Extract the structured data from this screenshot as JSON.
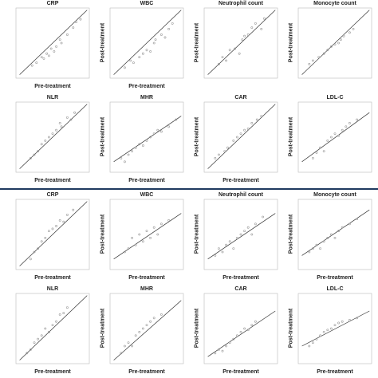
{
  "figure": {
    "divider_color": "#1f3a5f",
    "point_color": "#9a9a9a",
    "line_color": "#333333",
    "frame_color": "#bbbbbb"
  },
  "chart_data": [
    {
      "type": "scatter",
      "title": "CRP",
      "xlabel": "Pre-treatment",
      "ylabel": "",
      "x": [
        0.22,
        0.28,
        0.35,
        0.38,
        0.42,
        0.45,
        0.48,
        0.52,
        0.55,
        0.6,
        0.62,
        0.7,
        0.78,
        0.82,
        0.88
      ],
      "y": [
        0.18,
        0.22,
        0.3,
        0.28,
        0.35,
        0.32,
        0.42,
        0.38,
        0.45,
        0.55,
        0.5,
        0.62,
        0.72,
        0.8,
        0.84
      ],
      "fit": [
        [
          0.05,
          0.05
        ],
        [
          0.97,
          0.97
        ]
      ]
    },
    {
      "type": "scatter",
      "title": "WBC",
      "xlabel": "Pre-treatment",
      "ylabel": "Post-treatment",
      "x": [
        0.2,
        0.28,
        0.32,
        0.4,
        0.45,
        0.5,
        0.55,
        0.6,
        0.62,
        0.7,
        0.75,
        0.8,
        0.85
      ],
      "y": [
        0.15,
        0.25,
        0.22,
        0.3,
        0.35,
        0.4,
        0.38,
        0.5,
        0.55,
        0.62,
        0.58,
        0.7,
        0.78
      ],
      "fit": [
        [
          0.05,
          0.05
        ],
        [
          0.97,
          0.97
        ]
      ]
    },
    {
      "type": "scatter",
      "title": "Neutrophil count",
      "xlabel": "",
      "ylabel": "Post-treatment",
      "x": [
        0.2,
        0.25,
        0.3,
        0.35,
        0.42,
        0.48,
        0.52,
        0.55,
        0.6,
        0.65,
        0.7,
        0.78,
        0.82
      ],
      "y": [
        0.2,
        0.3,
        0.25,
        0.4,
        0.42,
        0.35,
        0.55,
        0.6,
        0.62,
        0.72,
        0.78,
        0.7,
        0.85
      ],
      "fit": [
        [
          0.05,
          0.05
        ],
        [
          0.97,
          0.97
        ]
      ]
    },
    {
      "type": "scatter",
      "title": "Monocyte count",
      "xlabel": "",
      "ylabel": "Post-treatment",
      "x": [
        0.15,
        0.2,
        0.28,
        0.35,
        0.4,
        0.45,
        0.5,
        0.55,
        0.58,
        0.62,
        0.7,
        0.75
      ],
      "y": [
        0.2,
        0.25,
        0.3,
        0.35,
        0.4,
        0.45,
        0.48,
        0.5,
        0.55,
        0.6,
        0.65,
        0.7
      ],
      "fit": [
        [
          0.05,
          0.05
        ],
        [
          0.97,
          0.97
        ]
      ]
    },
    {
      "type": "scatter",
      "title": "NLR",
      "xlabel": "Pre-treatment",
      "ylabel": "",
      "x": [
        0.2,
        0.25,
        0.3,
        0.35,
        0.4,
        0.45,
        0.5,
        0.55,
        0.6,
        0.62,
        0.7,
        0.75,
        0.8
      ],
      "y": [
        0.2,
        0.25,
        0.3,
        0.4,
        0.45,
        0.5,
        0.55,
        0.6,
        0.7,
        0.65,
        0.78,
        0.75,
        0.85
      ],
      "fit": [
        [
          0.05,
          0.05
        ],
        [
          0.97,
          0.97
        ]
      ]
    },
    {
      "type": "scatter",
      "title": "MHR",
      "xlabel": "Pre-treatment",
      "ylabel": "Post-treatment",
      "x": [
        0.15,
        0.2,
        0.25,
        0.3,
        0.35,
        0.4,
        0.45,
        0.5,
        0.55,
        0.6,
        0.65,
        0.7,
        0.8,
        0.9
      ],
      "y": [
        0.2,
        0.15,
        0.25,
        0.3,
        0.35,
        0.4,
        0.38,
        0.45,
        0.5,
        0.55,
        0.6,
        0.58,
        0.65,
        0.75
      ],
      "fit": [
        [
          0.05,
          0.15
        ],
        [
          0.97,
          0.8
        ]
      ]
    },
    {
      "type": "scatter",
      "title": "CAR",
      "xlabel": "Pre-treatment",
      "ylabel": "Post-treatment",
      "x": [
        0.15,
        0.2,
        0.28,
        0.32,
        0.4,
        0.45,
        0.5,
        0.55,
        0.6,
        0.65,
        0.72,
        0.78
      ],
      "y": [
        0.2,
        0.25,
        0.3,
        0.35,
        0.45,
        0.5,
        0.55,
        0.6,
        0.62,
        0.7,
        0.75,
        0.8
      ],
      "fit": [
        [
          0.05,
          0.05
        ],
        [
          0.97,
          0.97
        ]
      ]
    },
    {
      "type": "scatter",
      "title": "LDL-C",
      "xlabel": "",
      "ylabel": "Post-treatment",
      "x": [
        0.2,
        0.25,
        0.3,
        0.35,
        0.4,
        0.45,
        0.5,
        0.55,
        0.6,
        0.65,
        0.7,
        0.8
      ],
      "y": [
        0.2,
        0.28,
        0.35,
        0.3,
        0.45,
        0.5,
        0.55,
        0.52,
        0.6,
        0.65,
        0.7,
        0.75
      ],
      "fit": [
        [
          0.05,
          0.15
        ],
        [
          0.97,
          0.85
        ]
      ]
    },
    {
      "type": "scatter",
      "title": "CRP",
      "xlabel": "Pre-treatment",
      "ylabel": "",
      "x": [
        0.2,
        0.25,
        0.3,
        0.35,
        0.4,
        0.45,
        0.5,
        0.55,
        0.6,
        0.65,
        0.7,
        0.78
      ],
      "y": [
        0.15,
        0.25,
        0.3,
        0.4,
        0.45,
        0.55,
        0.58,
        0.62,
        0.7,
        0.68,
        0.78,
        0.85
      ],
      "fit": [
        [
          0.05,
          0.05
        ],
        [
          0.97,
          0.97
        ]
      ]
    },
    {
      "type": "scatter",
      "title": "WBC",
      "xlabel": "Pre-treatment",
      "ylabel": "Post-treatment",
      "x": [
        0.2,
        0.25,
        0.3,
        0.35,
        0.4,
        0.45,
        0.5,
        0.55,
        0.6,
        0.65,
        0.7,
        0.8
      ],
      "y": [
        0.25,
        0.3,
        0.45,
        0.35,
        0.5,
        0.4,
        0.55,
        0.45,
        0.6,
        0.5,
        0.65,
        0.7
      ],
      "fit": [
        [
          0.05,
          0.15
        ],
        [
          0.97,
          0.8
        ]
      ]
    },
    {
      "type": "scatter",
      "title": "Neutrophil count",
      "xlabel": "Pre-treatment",
      "ylabel": "Post-treatment",
      "x": [
        0.15,
        0.2,
        0.25,
        0.3,
        0.35,
        0.4,
        0.45,
        0.5,
        0.55,
        0.6,
        0.65,
        0.7,
        0.8
      ],
      "y": [
        0.2,
        0.3,
        0.25,
        0.35,
        0.4,
        0.3,
        0.45,
        0.5,
        0.55,
        0.6,
        0.5,
        0.65,
        0.75
      ],
      "fit": [
        [
          0.05,
          0.15
        ],
        [
          0.97,
          0.8
        ]
      ]
    },
    {
      "type": "scatter",
      "title": "Monocyte count",
      "xlabel": "Pre-treatment",
      "ylabel": "Post-treatment",
      "x": [
        0.15,
        0.2,
        0.25,
        0.3,
        0.35,
        0.4,
        0.45,
        0.5,
        0.55,
        0.6,
        0.7,
        0.8
      ],
      "y": [
        0.25,
        0.3,
        0.35,
        0.3,
        0.4,
        0.45,
        0.5,
        0.45,
        0.55,
        0.6,
        0.65,
        0.72
      ],
      "fit": [
        [
          0.05,
          0.2
        ],
        [
          0.97,
          0.85
        ]
      ]
    },
    {
      "type": "scatter",
      "title": "NLR",
      "xlabel": "Pre-treatment",
      "ylabel": "",
      "x": [
        0.15,
        0.2,
        0.25,
        0.3,
        0.35,
        0.4,
        0.45,
        0.5,
        0.55,
        0.6,
        0.65,
        0.7
      ],
      "y": [
        0.15,
        0.2,
        0.3,
        0.35,
        0.4,
        0.5,
        0.45,
        0.55,
        0.6,
        0.7,
        0.72,
        0.8
      ],
      "fit": [
        [
          0.05,
          0.05
        ],
        [
          0.97,
          0.97
        ]
      ]
    },
    {
      "type": "scatter",
      "title": "MHR",
      "xlabel": "Pre-treatment",
      "ylabel": "Post-treatment",
      "x": [
        0.15,
        0.2,
        0.25,
        0.3,
        0.35,
        0.4,
        0.45,
        0.5,
        0.55,
        0.6,
        0.7
      ],
      "y": [
        0.15,
        0.25,
        0.3,
        0.25,
        0.4,
        0.45,
        0.5,
        0.55,
        0.6,
        0.65,
        0.7
      ],
      "fit": [
        [
          0.05,
          0.05
        ],
        [
          0.97,
          0.9
        ]
      ]
    },
    {
      "type": "scatter",
      "title": "CAR",
      "xlabel": "Pre-treatment",
      "ylabel": "Post-treatment",
      "x": [
        0.15,
        0.2,
        0.25,
        0.3,
        0.35,
        0.4,
        0.45,
        0.5,
        0.55,
        0.6,
        0.65,
        0.7
      ],
      "y": [
        0.15,
        0.2,
        0.18,
        0.25,
        0.3,
        0.35,
        0.4,
        0.45,
        0.5,
        0.48,
        0.55,
        0.6
      ],
      "fit": [
        [
          0.05,
          0.1
        ],
        [
          0.97,
          0.75
        ]
      ]
    },
    {
      "type": "scatter",
      "title": "LDL-C",
      "xlabel": "Pre-treatment",
      "ylabel": "Post-treatment",
      "x": [
        0.15,
        0.2,
        0.25,
        0.3,
        0.35,
        0.4,
        0.45,
        0.5,
        0.55,
        0.6,
        0.7,
        0.8
      ],
      "y": [
        0.25,
        0.3,
        0.35,
        0.4,
        0.45,
        0.48,
        0.5,
        0.55,
        0.58,
        0.6,
        0.62,
        0.65
      ],
      "fit": [
        [
          0.05,
          0.25
        ],
        [
          0.97,
          0.75
        ]
      ]
    }
  ]
}
